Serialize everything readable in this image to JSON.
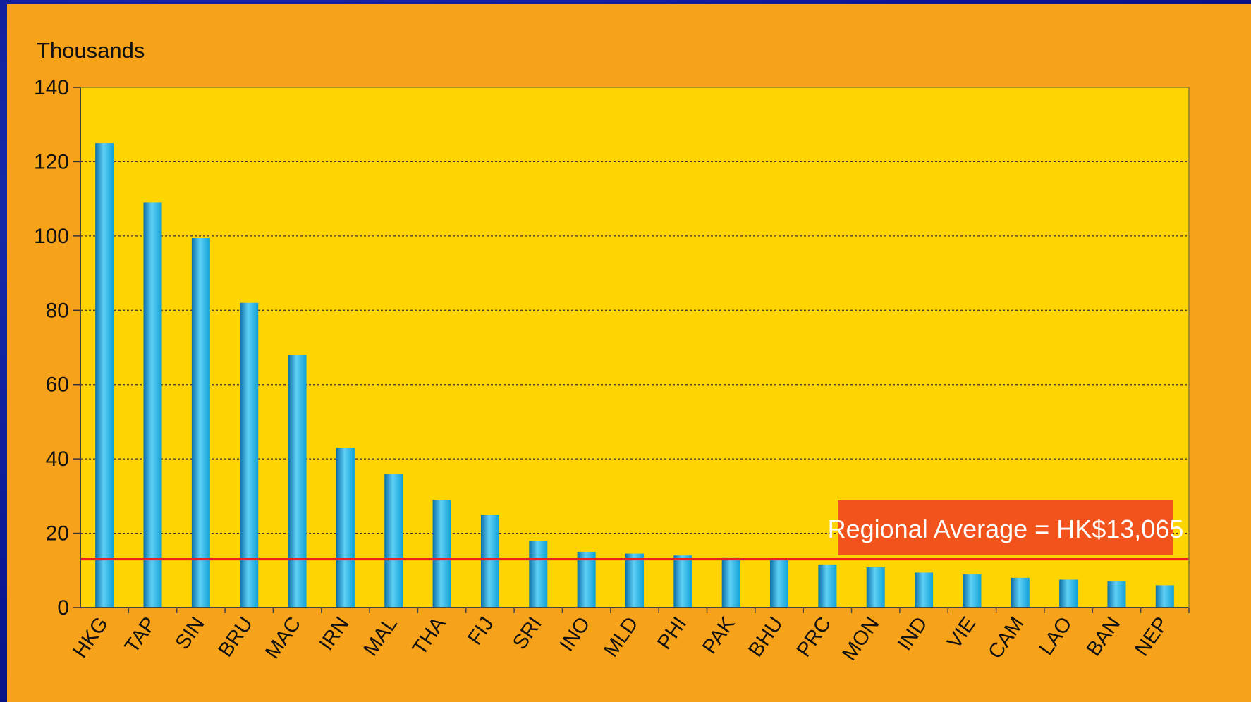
{
  "chart_data": {
    "type": "bar",
    "ylabel": "Thousands",
    "ylim": [
      0,
      140
    ],
    "yticks": [
      0,
      20,
      40,
      60,
      80,
      100,
      120,
      140
    ],
    "grid": "horizontal-dotted",
    "categories": [
      "HKG",
      "TAP",
      "SIN",
      "BRU",
      "MAC",
      "IRN",
      "MAL",
      "THA",
      "FIJ",
      "SRI",
      "INO",
      "MLD",
      "PHI",
      "PAK",
      "BHU",
      "PRC",
      "MON",
      "IND",
      "VIE",
      "CAM",
      "LAO",
      "BAN",
      "NEP"
    ],
    "values": [
      125,
      109,
      99.5,
      82,
      68,
      43,
      36,
      29,
      25,
      18,
      15,
      14.5,
      14,
      13.5,
      12.8,
      11.6,
      10.8,
      9.4,
      8.9,
      8,
      7.5,
      7,
      6
    ],
    "reference_line": {
      "value": 13.065,
      "label": "Regional Average = HK$13,065",
      "color": "#e8231f"
    },
    "colors": {
      "panel": "#f7a21b",
      "plot_area": "#fed402",
      "bar": "#0fa0d8",
      "bar_highlight": "#5fd0f5",
      "bar_shadow": "#0a6fa8",
      "badge": "#f2521c",
      "slide_background": "#0a1690"
    }
  }
}
